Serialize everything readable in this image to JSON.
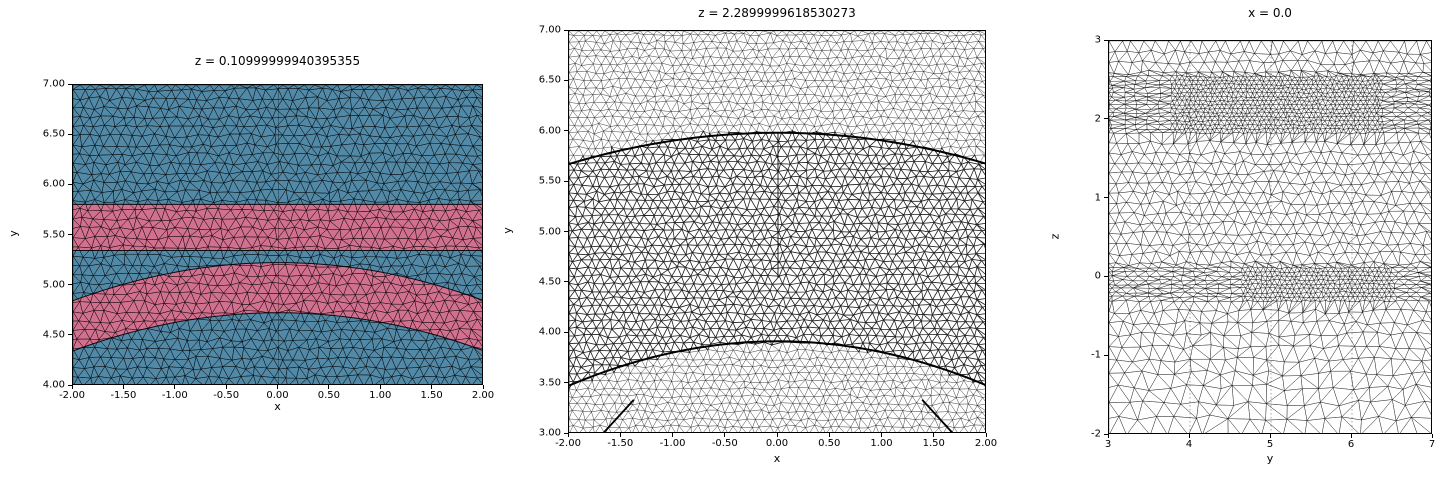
{
  "chart_data": [
    {
      "type": "mesh",
      "title": "z = 0.10999999940395355",
      "xlabel": "x",
      "ylabel": "y",
      "xlim": [
        -2,
        2
      ],
      "ylim": [
        4,
        7
      ],
      "xtick_labels": [
        "-2.00",
        "-1.50",
        "-1.00",
        "-0.50",
        "0.00",
        "0.50",
        "1.00",
        "1.50",
        "2.00"
      ],
      "ytick_labels": [
        "4.00",
        "4.50",
        "5.00",
        "5.50",
        "6.00",
        "6.50",
        "7.00"
      ],
      "background_color": "#5189a7",
      "band_color": "#d2708f",
      "regions": [
        {
          "name": "horizontal-band",
          "type": "hband",
          "y0": 5.35,
          "y1": 5.81
        },
        {
          "name": "curved-band",
          "type": "parabola-band",
          "top_c": 5.23,
          "top_a": -0.095,
          "bot_c": 4.73,
          "bot_a": -0.095
        }
      ],
      "center_line": {
        "x": 0,
        "y0": 4.0,
        "y1": 7.0,
        "width": 0.7,
        "alpha": 0.45
      },
      "mesh": {
        "spacing": 0.105,
        "jitter": 0.4,
        "seed": 12,
        "line_width": 0.5,
        "line_alpha": 0.75
      }
    },
    {
      "type": "mesh",
      "title": "z = 2.2899999618530273",
      "xlabel": "x",
      "ylabel": "y",
      "xlim": [
        -2,
        2
      ],
      "ylim": [
        3,
        7
      ],
      "xtick_labels": [
        "-2.00",
        "-1.50",
        "-1.00",
        "-0.50",
        "0.00",
        "0.50",
        "1.00",
        "1.50",
        "2.00"
      ],
      "ytick_labels": [
        "3.00",
        "3.50",
        "4.00",
        "4.50",
        "5.00",
        "5.50",
        "6.00",
        "6.50",
        "7.00"
      ],
      "curves": [
        {
          "name": "top-arc",
          "c": 5.99,
          "a": -0.0775,
          "line_width": 2.0
        },
        {
          "name": "bottom-arc",
          "c": 3.92,
          "a": -0.11,
          "line_width": 2.0
        }
      ],
      "extra_segments": [
        [
          [
            -1.68,
            3.0
          ],
          [
            -1.52,
            3.18
          ],
          [
            -1.38,
            3.34
          ]
        ],
        [
          [
            1.68,
            3.0
          ],
          [
            1.52,
            3.18
          ],
          [
            1.38,
            3.34
          ]
        ]
      ],
      "center_line": {
        "x": 0,
        "y0": 4.55,
        "y1": 5.99,
        "width": 1.0,
        "alpha": 0.85
      },
      "mesh": {
        "spacing": 0.085,
        "jitter": 0.4,
        "seed": 5,
        "line_width": 0.38,
        "line_alpha": 0.6,
        "inner_line_width": 0.8,
        "inner_line_alpha": 0.88
      }
    },
    {
      "type": "mesh",
      "title": "x = 0.0",
      "xlabel": "y",
      "ylabel": "z",
      "xlim": [
        3,
        7
      ],
      "ylim": [
        -2,
        3
      ],
      "xtick_labels": [
        "3",
        "4",
        "5",
        "6",
        "7"
      ],
      "ytick_labels": [
        "-2",
        "-1",
        "0",
        "1",
        "2",
        "3"
      ],
      "grid_x": [
        4,
        5,
        6
      ],
      "dense_bands": [
        {
          "v": [
            1.8,
            2.55
          ],
          "h": [
            3.75,
            6.35
          ],
          "spacing": 0.058
        },
        {
          "v": [
            -0.33,
            0.15
          ],
          "h": [
            4.55,
            6.5
          ],
          "spacing": 0.06
        }
      ],
      "mesh": {
        "base_spacing": 0.145,
        "coarse_bottom_spacing": 0.24,
        "jitter": 0.4,
        "seed": 99,
        "line_width": 0.42,
        "line_alpha": 0.7
      }
    }
  ]
}
